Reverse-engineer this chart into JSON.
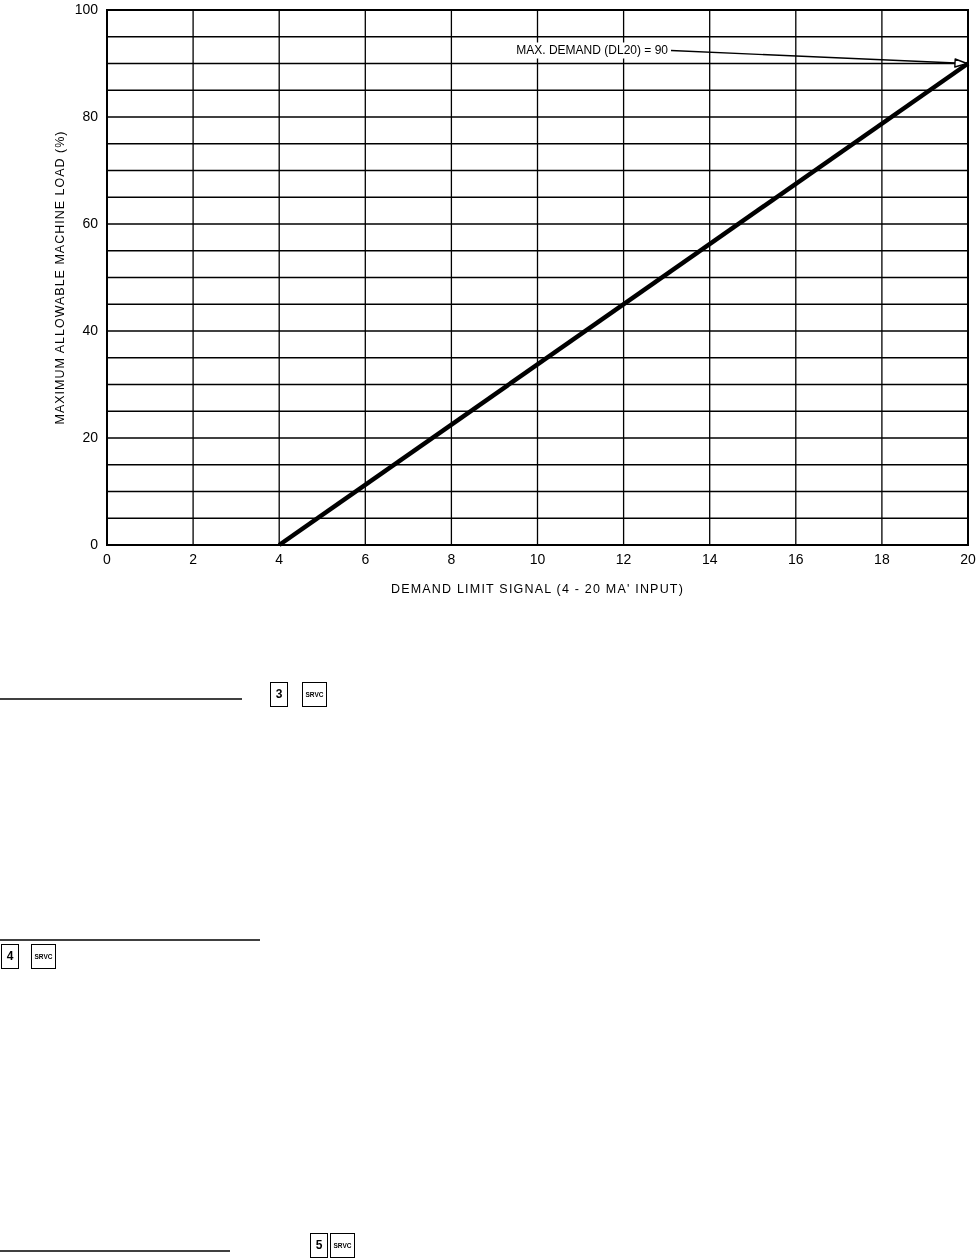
{
  "chart_data": {
    "type": "line",
    "xlabel": "DEMAND LIMIT SIGNAL (4 - 20 MA' INPUT)",
    "ylabel": "MAXIMUM ALLOWABLE MACHINE LOAD (%)",
    "xlim": [
      0,
      20
    ],
    "ylim": [
      0,
      100
    ],
    "xticks": [
      0,
      2,
      4,
      6,
      8,
      10,
      12,
      14,
      16,
      18,
      20
    ],
    "yticks": [
      0,
      {
        "value": 5,
        "label": null
      },
      {
        "value": 10,
        "label": null
      },
      {
        "value": 15,
        "label": null
      },
      20,
      {
        "value": 25,
        "label": null
      },
      {
        "value": 30,
        "label": null
      },
      {
        "value": 35,
        "label": null
      },
      40,
      {
        "value": 45,
        "label": null
      },
      {
        "value": 50,
        "label": null
      },
      {
        "value": 55,
        "label": null
      },
      60,
      {
        "value": 65,
        "label": null
      },
      {
        "value": 70,
        "label": null
      },
      {
        "value": 75,
        "label": null
      },
      80,
      {
        "value": 85,
        "label": null
      },
      {
        "value": 90,
        "label": null
      },
      {
        "value": 95,
        "label": null
      },
      100
    ],
    "grid": true,
    "series": [
      {
        "color": "#000000",
        "x": [
          4,
          20
        ],
        "values": [
          0,
          90
        ]
      }
    ],
    "annotations": [
      {
        "text": "MAX. DEMAND (DL20) = 90",
        "x": 20,
        "y": 90
      },
      "3",
      "SRVC",
      "4",
      "SRVC",
      "5",
      "SRVC"
    ]
  }
}
